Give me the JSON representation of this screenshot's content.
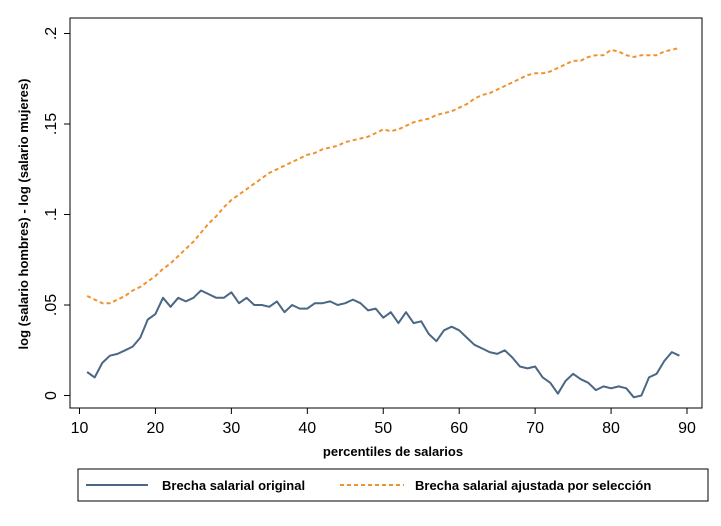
{
  "chart_data": {
    "type": "line",
    "xlabel": "percentiles de salarios",
    "ylabel": "log (salario hombres) - log (salario mujeres)",
    "xlim": [
      10,
      90
    ],
    "ylim": [
      0,
      0.2
    ],
    "x_ticks": [
      10,
      20,
      30,
      40,
      50,
      60,
      70,
      80,
      90
    ],
    "x_tick_labels": [
      "10",
      "20",
      "30",
      "40",
      "50",
      "60",
      "70",
      "80",
      "90"
    ],
    "y_ticks": [
      0,
      0.05,
      0.1,
      0.15,
      0.2
    ],
    "y_tick_labels": [
      "0",
      ".05",
      ".1",
      ".15",
      ".2"
    ],
    "grid": false,
    "legend_position": "bottom",
    "x": [
      11,
      12,
      13,
      14,
      15,
      16,
      17,
      18,
      19,
      20,
      21,
      22,
      23,
      24,
      25,
      26,
      27,
      28,
      29,
      30,
      31,
      32,
      33,
      34,
      35,
      36,
      37,
      38,
      39,
      40,
      41,
      42,
      43,
      44,
      45,
      46,
      47,
      48,
      49,
      50,
      51,
      52,
      53,
      54,
      55,
      56,
      57,
      58,
      59,
      60,
      61,
      62,
      63,
      64,
      65,
      66,
      67,
      68,
      69,
      70,
      71,
      72,
      73,
      74,
      75,
      76,
      77,
      78,
      79,
      80,
      81,
      82,
      83,
      84,
      85,
      86,
      87,
      88,
      89
    ],
    "series": [
      {
        "name": "Brecha salarial original",
        "color": "#4a6785",
        "style": "solid",
        "values": [
          0.013,
          0.01,
          0.018,
          0.022,
          0.023,
          0.025,
          0.027,
          0.032,
          0.042,
          0.045,
          0.054,
          0.049,
          0.054,
          0.052,
          0.054,
          0.058,
          0.056,
          0.054,
          0.054,
          0.057,
          0.051,
          0.054,
          0.05,
          0.05,
          0.049,
          0.052,
          0.046,
          0.05,
          0.048,
          0.048,
          0.051,
          0.051,
          0.052,
          0.05,
          0.051,
          0.053,
          0.051,
          0.047,
          0.048,
          0.043,
          0.046,
          0.04,
          0.046,
          0.04,
          0.041,
          0.034,
          0.03,
          0.036,
          0.038,
          0.036,
          0.032,
          0.028,
          0.026,
          0.024,
          0.023,
          0.025,
          0.021,
          0.016,
          0.015,
          0.016,
          0.01,
          0.007,
          0.001,
          0.008,
          0.012,
          0.009,
          0.007,
          0.003,
          0.005,
          0.004,
          0.005,
          0.004,
          -0.001,
          0.0,
          0.01,
          0.012,
          0.019,
          0.024,
          0.022
        ]
      },
      {
        "name": "Brecha salarial ajustada por selección",
        "color": "#f0922e",
        "style": "dashed",
        "values": [
          0.055,
          0.053,
          0.051,
          0.051,
          0.053,
          0.055,
          0.058,
          0.06,
          0.063,
          0.066,
          0.07,
          0.073,
          0.077,
          0.081,
          0.085,
          0.09,
          0.095,
          0.099,
          0.104,
          0.108,
          0.111,
          0.114,
          0.117,
          0.12,
          0.123,
          0.125,
          0.127,
          0.129,
          0.131,
          0.133,
          0.134,
          0.136,
          0.137,
          0.138,
          0.14,
          0.141,
          0.142,
          0.143,
          0.145,
          0.147,
          0.146,
          0.147,
          0.149,
          0.151,
          0.152,
          0.153,
          0.155,
          0.156,
          0.157,
          0.159,
          0.161,
          0.164,
          0.166,
          0.167,
          0.169,
          0.171,
          0.173,
          0.175,
          0.177,
          0.178,
          0.178,
          0.179,
          0.181,
          0.183,
          0.185,
          0.185,
          0.187,
          0.188,
          0.188,
          0.191,
          0.19,
          0.188,
          0.187,
          0.188,
          0.188,
          0.188,
          0.19,
          0.191,
          0.192
        ]
      }
    ]
  }
}
